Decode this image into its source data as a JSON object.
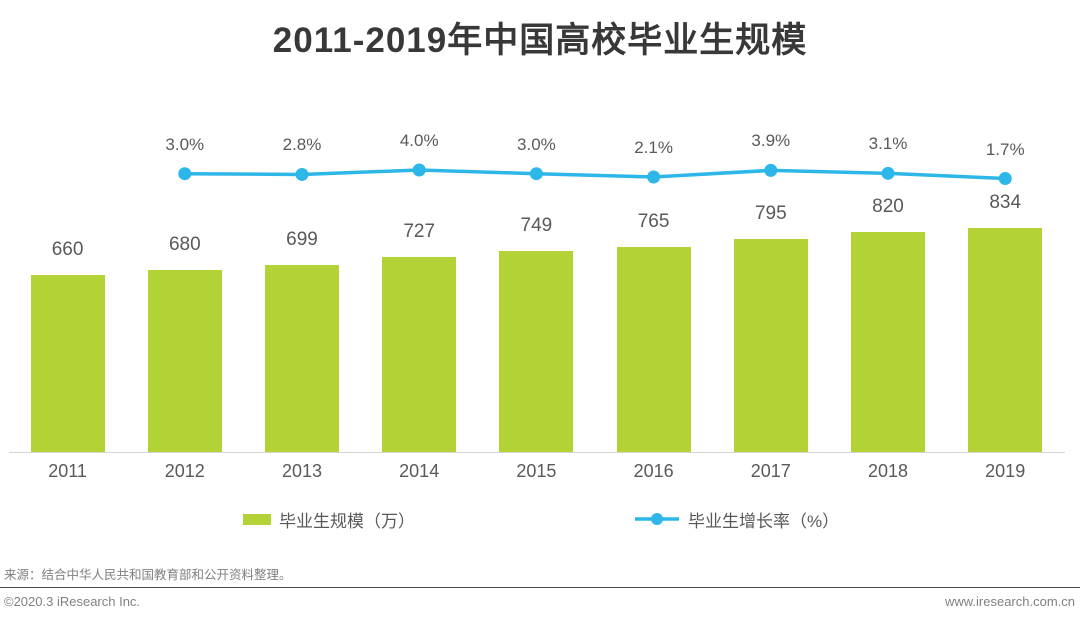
{
  "title": "2011-2019年中国高校毕业生规模",
  "chart_data": {
    "type": "bar",
    "title": "2011-2019年中国高校毕业生规模",
    "categories": [
      "2011",
      "2012",
      "2013",
      "2014",
      "2015",
      "2016",
      "2017",
      "2018",
      "2019"
    ],
    "series": [
      {
        "name": "毕业生规模（万）",
        "type": "bar",
        "color": "#b2d235",
        "values": [
          660,
          680,
          699,
          727,
          749,
          765,
          795,
          820,
          834
        ]
      },
      {
        "name": "毕业生增长率（%）",
        "type": "line",
        "color": "#2cb7e8",
        "values": [
          null,
          3.0,
          2.8,
          4.0,
          3.0,
          2.1,
          3.9,
          3.1,
          1.7
        ],
        "point_labels": [
          "",
          "3.0%",
          "2.8%",
          "4.0%",
          "3.0%",
          "2.1%",
          "3.9%",
          "3.1%",
          "1.7%"
        ]
      }
    ],
    "xlabel": "",
    "ylabel": "",
    "grid": false,
    "legend_position": "bottom",
    "bar_value_labels": [
      "660",
      "680",
      "699",
      "727",
      "749",
      "765",
      "795",
      "820",
      "834"
    ]
  },
  "legend": {
    "bar_label": "毕业生规模（万）",
    "line_label": "毕业生增长率（%）"
  },
  "source": "来源：结合中华人民共和国教育部和公开资料整理。",
  "footer": {
    "left": "©2020.3 iResearch Inc.",
    "right": "www.iresearch.com.cn"
  },
  "colors": {
    "bar": "#b2d235",
    "line": "#2cb7e8",
    "title_text": "#383838",
    "label_text": "#595959",
    "muted_text": "#808080"
  }
}
